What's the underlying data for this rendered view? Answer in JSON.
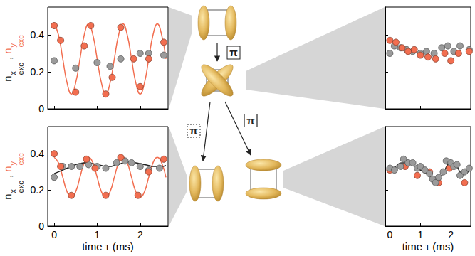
{
  "chart_data": [
    {
      "type": "scatter",
      "marker": "circle",
      "ylabel": [
        {
          "base": "n",
          "sup": "x",
          "sub": "exc",
          "color": "#222222"
        },
        {
          "base": " , ",
          "color": "#222222"
        },
        {
          "base": "n",
          "sup": "y",
          "sub": "exc",
          "color": "#f26e50"
        }
      ],
      "xlim": [
        -0.15,
        2.65
      ],
      "xticks": [
        0,
        1,
        2
      ],
      "ylim": [
        0,
        0.55
      ],
      "yticks": [
        0,
        0.2,
        0.4
      ],
      "tick_labels": "y",
      "series": [
        {
          "type": "line",
          "color": "#f26e50",
          "x": [
            0,
            0.1,
            0.2,
            0.3,
            0.4,
            0.5,
            0.6,
            0.7,
            0.8,
            0.9,
            1.0,
            1.1,
            1.2,
            1.3,
            1.4,
            1.5,
            1.6,
            1.7,
            1.8,
            1.9,
            2.0,
            2.1,
            2.2,
            2.3,
            2.4,
            2.5,
            2.6
          ],
          "values": [
            0.46,
            0.4,
            0.27,
            0.14,
            0.08,
            0.14,
            0.27,
            0.4,
            0.46,
            0.4,
            0.27,
            0.14,
            0.08,
            0.14,
            0.27,
            0.4,
            0.46,
            0.4,
            0.27,
            0.14,
            0.08,
            0.14,
            0.27,
            0.4,
            0.46,
            0.4,
            0.27
          ]
        },
        {
          "type": "scatter",
          "color": "#9b9b9b",
          "x": [
            0,
            0.5,
            1.0,
            1.3,
            1.55,
            2.0,
            2.2,
            2.55
          ],
          "values": [
            0.26,
            0.22,
            0.25,
            0.23,
            0.27,
            0.3,
            0.3,
            0.29
          ]
        },
        {
          "type": "scatter",
          "color": "#f26e50",
          "x": [
            0,
            0.15,
            0.5,
            0.7,
            0.85,
            1.2,
            1.35,
            1.55,
            1.85,
            2.0,
            2.2,
            2.55
          ],
          "values": [
            0.45,
            0.37,
            0.09,
            0.34,
            0.45,
            0.08,
            0.17,
            0.44,
            0.27,
            0.12,
            0.27,
            0.36
          ]
        }
      ]
    },
    {
      "type": "scatter",
      "marker": "circle",
      "ylabel": [
        {
          "base": "n",
          "sup": "x",
          "sub": "exc",
          "color": "#222222"
        },
        {
          "base": " , ",
          "color": "#222222"
        },
        {
          "base": "n",
          "sup": "y",
          "sub": "exc",
          "color": "#f26e50"
        }
      ],
      "xlabel": "time τ (ms)",
      "xlim": [
        -0.15,
        2.65
      ],
      "xticks": [
        0,
        1,
        2
      ],
      "ylim": [
        0,
        0.55
      ],
      "yticks": [
        0,
        0.2,
        0.4
      ],
      "series": [
        {
          "type": "line",
          "color": "#f26e50",
          "x": [
            0,
            0.1,
            0.2,
            0.3,
            0.4,
            0.5,
            0.6,
            0.7,
            0.8,
            0.9,
            1.0,
            1.1,
            1.2,
            1.3,
            1.4,
            1.5,
            1.6,
            1.7,
            1.8,
            1.9,
            2.0,
            2.1,
            2.2,
            2.3,
            2.4,
            2.5,
            2.6
          ],
          "values": [
            0.38,
            0.35,
            0.27,
            0.19,
            0.16,
            0.19,
            0.27,
            0.35,
            0.38,
            0.35,
            0.27,
            0.19,
            0.16,
            0.19,
            0.27,
            0.35,
            0.38,
            0.35,
            0.27,
            0.19,
            0.16,
            0.19,
            0.27,
            0.35,
            0.38,
            0.35,
            0.27
          ]
        },
        {
          "type": "line",
          "color": "#222222",
          "x": [
            0,
            0.1,
            0.2,
            0.3,
            0.4,
            0.5,
            0.6,
            0.7,
            0.8,
            0.9,
            1.0,
            1.1,
            1.2,
            1.3,
            1.4,
            1.5,
            1.6,
            1.7,
            1.8,
            1.9,
            2.0,
            2.1,
            2.2,
            2.3,
            2.4,
            2.5,
            2.6
          ],
          "values": [
            0.29,
            0.3,
            0.31,
            0.32,
            0.33,
            0.34,
            0.345,
            0.35,
            0.35,
            0.345,
            0.34,
            0.335,
            0.33,
            0.33,
            0.335,
            0.34,
            0.35,
            0.355,
            0.355,
            0.35,
            0.345,
            0.34,
            0.335,
            0.33,
            0.33,
            0.33,
            0.335
          ]
        },
        {
          "type": "scatter",
          "color": "#9b9b9b",
          "x": [
            0,
            0.2,
            0.4,
            0.6,
            0.8,
            1.0,
            1.2,
            1.45,
            1.65,
            1.8,
            2.0,
            2.2,
            2.45
          ],
          "values": [
            0.27,
            0.33,
            0.33,
            0.33,
            0.34,
            0.33,
            0.32,
            0.35,
            0.36,
            0.35,
            0.33,
            0.31,
            0.32
          ]
        },
        {
          "type": "scatter",
          "color": "#f26e50",
          "x": [
            0,
            0.15,
            0.4,
            0.75,
            0.95,
            1.2,
            1.55,
            1.95,
            2.2,
            2.55
          ],
          "values": [
            0.4,
            0.33,
            0.17,
            0.37,
            0.32,
            0.17,
            0.38,
            0.17,
            0.3,
            0.37
          ]
        }
      ]
    },
    {
      "type": "scatter",
      "marker": "circle",
      "xlim": [
        -0.15,
        2.65
      ],
      "xticks": [
        0,
        1,
        2
      ],
      "ylim": [
        0,
        0.55
      ],
      "yticks": [
        0,
        0.2,
        0.4
      ],
      "tick_labels": false,
      "series": [
        {
          "type": "scatter",
          "color": "#9b9b9b",
          "x": [
            0,
            0.15,
            0.35,
            0.55,
            0.75,
            1.0,
            1.2,
            1.45,
            1.7,
            1.9,
            2.1,
            2.3,
            2.6
          ],
          "values": [
            0.3,
            0.34,
            0.33,
            0.32,
            0.31,
            0.3,
            0.31,
            0.3,
            0.33,
            0.34,
            0.31,
            0.34,
            0.32
          ]
        },
        {
          "type": "scatter",
          "color": "#f26e50",
          "x": [
            0,
            0.2,
            0.4,
            0.6,
            0.8,
            1.0,
            1.25,
            1.5,
            1.8,
            2.0,
            2.25,
            2.6
          ],
          "values": [
            0.37,
            0.36,
            0.33,
            0.31,
            0.32,
            0.29,
            0.28,
            0.27,
            0.3,
            0.26,
            0.3,
            0.31
          ]
        }
      ]
    },
    {
      "type": "scatter",
      "marker": "circle",
      "xlabel": "time τ (ms)",
      "xlim": [
        -0.15,
        2.65
      ],
      "xticks": [
        0,
        1,
        2
      ],
      "ylim": [
        0,
        0.55
      ],
      "yticks": [
        0,
        0.2,
        0.4
      ],
      "tick_labels": "x",
      "series": [
        {
          "type": "line",
          "color": "#222222",
          "x": [
            0,
            0.1,
            0.2,
            0.3,
            0.4,
            0.5,
            0.6,
            0.7,
            0.8,
            0.9,
            1.0,
            1.1,
            1.2,
            1.3,
            1.4,
            1.5,
            1.6,
            1.7,
            1.8,
            1.9,
            2.0,
            2.1,
            2.2,
            2.3,
            2.4,
            2.5,
            2.6
          ],
          "values": [
            0.31,
            0.32,
            0.33,
            0.345,
            0.35,
            0.35,
            0.345,
            0.34,
            0.33,
            0.32,
            0.31,
            0.3,
            0.29,
            0.28,
            0.265,
            0.255,
            0.26,
            0.28,
            0.31,
            0.34,
            0.355,
            0.35,
            0.33,
            0.3,
            0.285,
            0.29,
            0.31
          ]
        },
        {
          "type": "scatter",
          "color": "#f26e50",
          "x": [
            0,
            0.5,
            0.9,
            1.3,
            1.6,
            1.95,
            2.45
          ],
          "values": [
            0.31,
            0.33,
            0.28,
            0.3,
            0.24,
            0.32,
            0.24
          ]
        },
        {
          "type": "scatter",
          "color": "#9b9b9b",
          "x": [
            0,
            0.15,
            0.35,
            0.45,
            0.6,
            0.75,
            0.9,
            1.0,
            1.15,
            1.3,
            1.4,
            1.5,
            1.6,
            1.75,
            1.85,
            2.0,
            2.1,
            2.2,
            2.3,
            2.45,
            2.6
          ],
          "values": [
            0.32,
            0.31,
            0.33,
            0.37,
            0.35,
            0.35,
            0.32,
            0.33,
            0.31,
            0.29,
            0.26,
            0.24,
            0.27,
            0.3,
            0.36,
            0.35,
            0.33,
            0.34,
            0.28,
            0.3,
            0.32
          ]
        }
      ]
    }
  ],
  "diagram": {
    "pulses": [
      "π",
      "π",
      "π"
    ]
  }
}
